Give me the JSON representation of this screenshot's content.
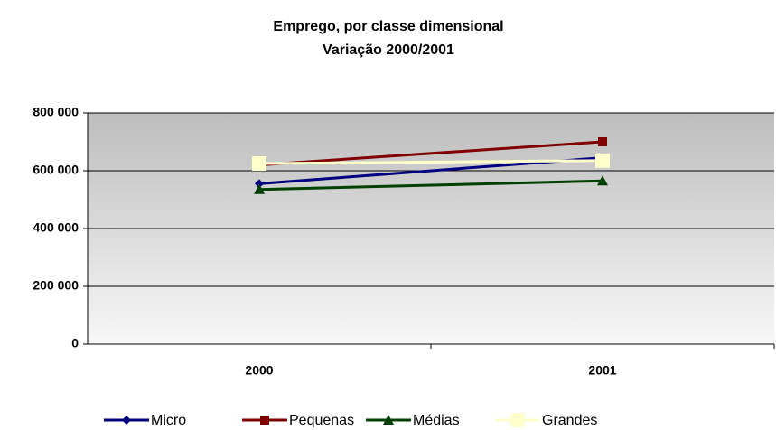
{
  "chart_data": {
    "type": "line",
    "title": "Emprego, por classe dimensional",
    "subtitle": "Variação 2000/2001",
    "categories": [
      "2000",
      "2001"
    ],
    "series": [
      {
        "name": "Micro",
        "color": "#000080",
        "marker": "diamond",
        "values": [
          555000,
          645000
        ]
      },
      {
        "name": "Pequenas",
        "color": "#800000",
        "marker": "square",
        "values": [
          620000,
          700000
        ]
      },
      {
        "name": "Médias",
        "color": "#004000",
        "marker": "triangle",
        "values": [
          535000,
          565000
        ]
      },
      {
        "name": "Grandes",
        "color": "#ffffcc",
        "marker": "square",
        "values": [
          625000,
          635000
        ]
      }
    ],
    "ylim": [
      0,
      800000
    ],
    "yticks": [
      {
        "value": 0,
        "label": "0"
      },
      {
        "value": 200000,
        "label": "200 000"
      },
      {
        "value": 400000,
        "label": "400 000"
      },
      {
        "value": 600000,
        "label": "600 000"
      },
      {
        "value": 800000,
        "label": "800 000"
      }
    ],
    "grid": true,
    "legend": "bottom"
  }
}
